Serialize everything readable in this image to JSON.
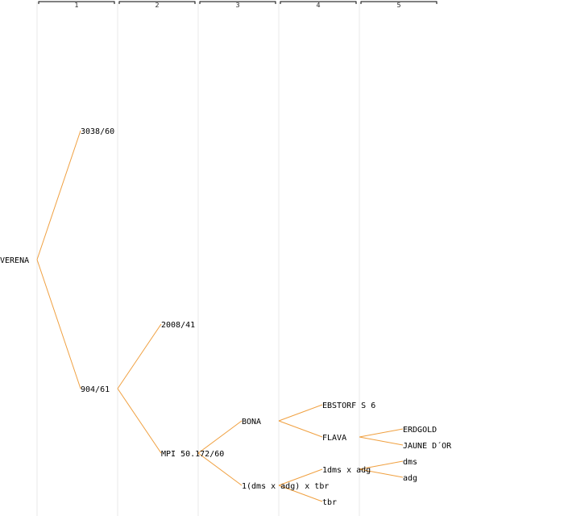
{
  "colors": {
    "edge": "#f0a040",
    "column_line": "#e8e8e8",
    "header_line": "#000000",
    "text": "#000000"
  },
  "generations": [
    "1",
    "2",
    "3",
    "4",
    "5"
  ],
  "tree": {
    "name": "VERENA",
    "children": [
      {
        "name": "3038/60"
      },
      {
        "name": "904/61",
        "children": [
          {
            "name": "2008/41"
          },
          {
            "name": "MPI 50.172/60",
            "children": [
              {
                "name": "BONA",
                "children": [
                  {
                    "name": "EBSTORF S 6"
                  },
                  {
                    "name": "FLAVA",
                    "children": [
                      {
                        "name": "ERDGOLD"
                      },
                      {
                        "name": "JAUNE D´OR"
                      }
                    ]
                  }
                ]
              },
              {
                "name": "1(dms x adg) x tbr",
                "children": [
                  {
                    "name": "1dms x adg",
                    "children": [
                      {
                        "name": "dms"
                      },
                      {
                        "name": "adg"
                      }
                    ]
                  },
                  {
                    "name": "tbr"
                  }
                ]
              }
            ]
          }
        ]
      }
    ]
  }
}
